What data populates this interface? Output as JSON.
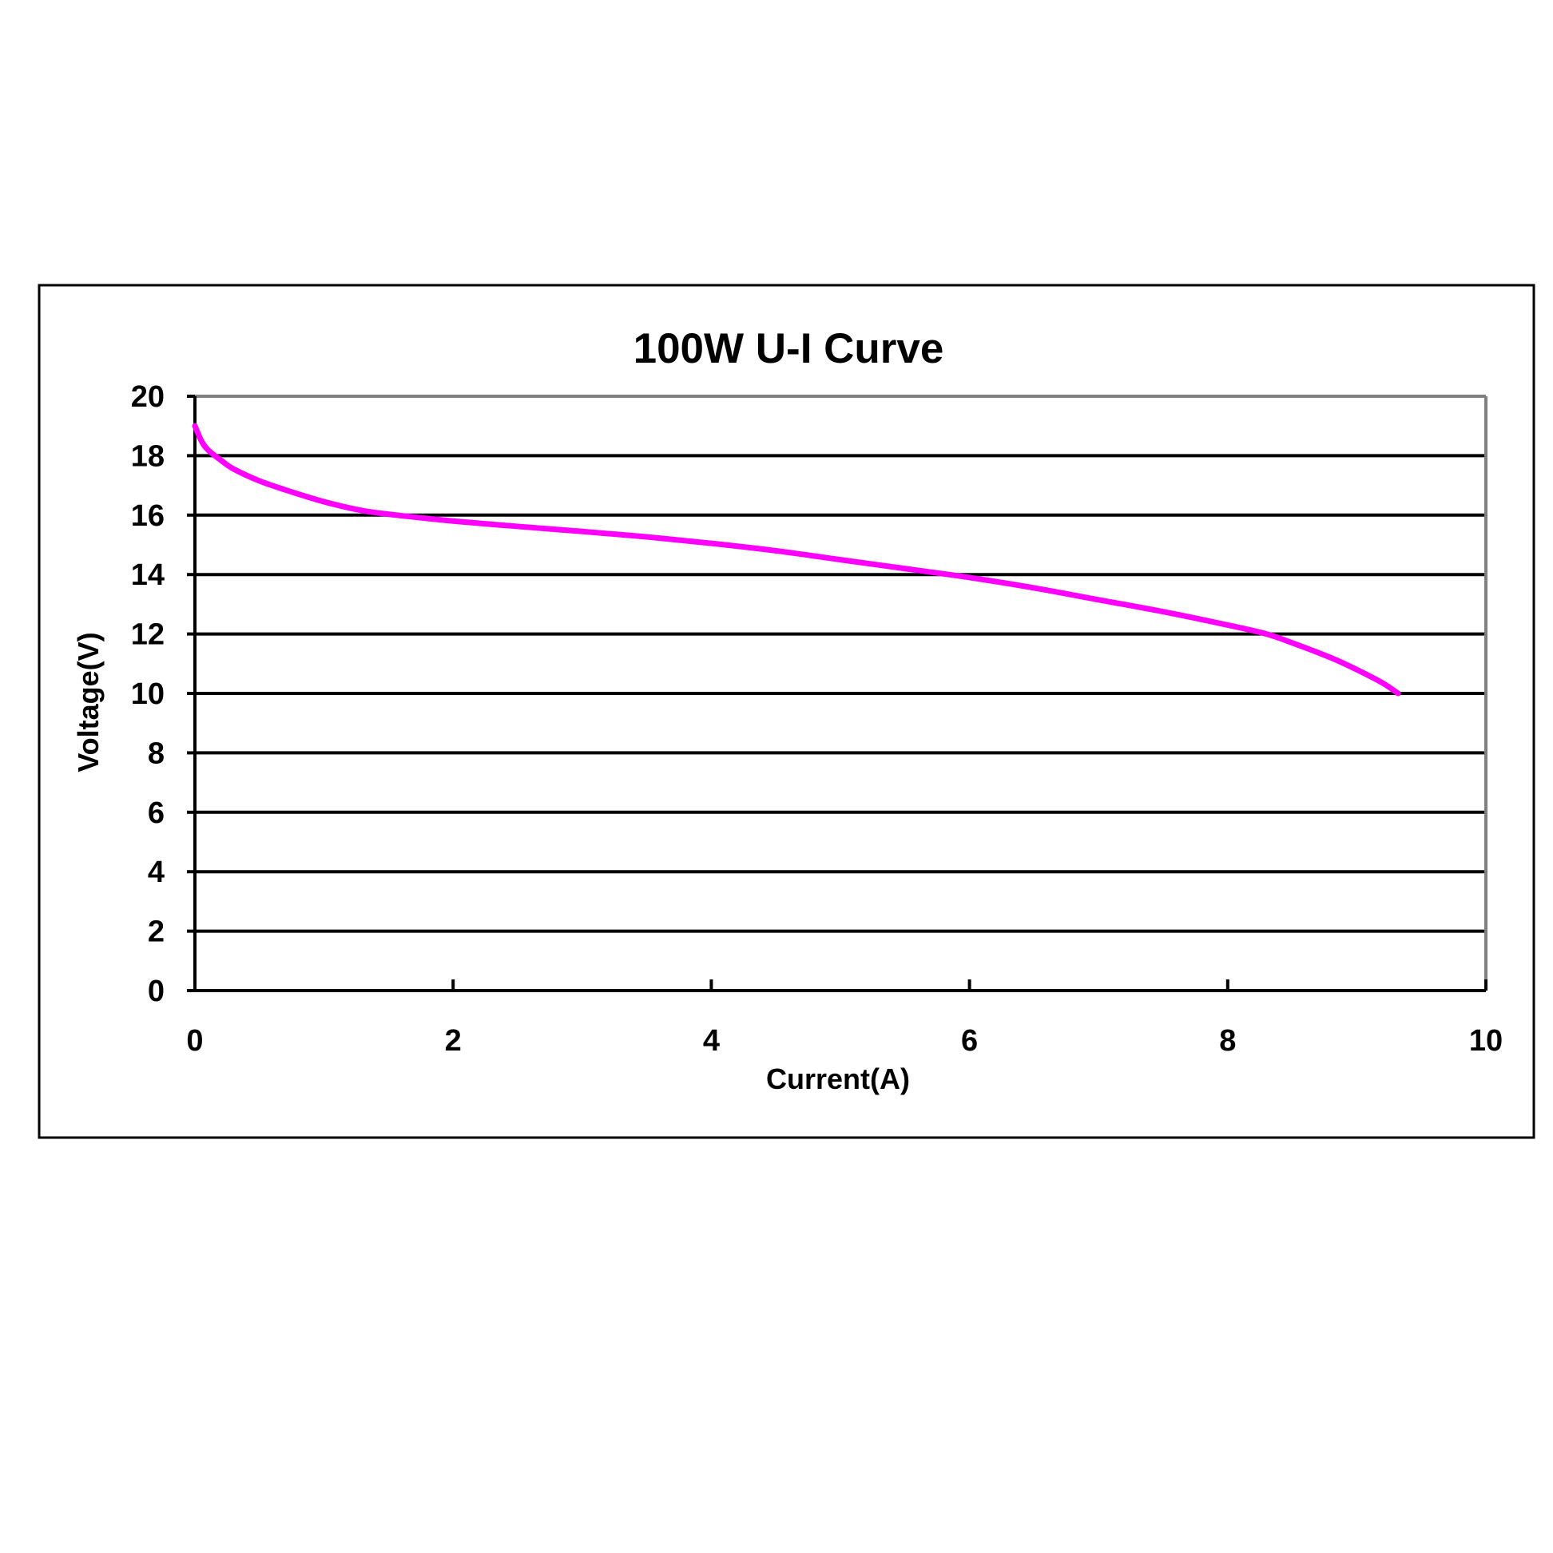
{
  "chart_data": {
    "type": "line",
    "title": "100W U-I Curve",
    "xlabel": "Current(A)",
    "ylabel": "Voltage(V)",
    "xlim": [
      0,
      10
    ],
    "ylim": [
      0,
      20
    ],
    "x_ticks": [
      0,
      2,
      4,
      6,
      8,
      10
    ],
    "y_ticks": [
      0,
      2,
      4,
      6,
      8,
      10,
      12,
      14,
      16,
      18,
      20
    ],
    "x_tick_labels": [
      "0",
      "2",
      "4",
      "6",
      "8",
      "10"
    ],
    "y_tick_labels": [
      "0",
      "2",
      "4",
      "6",
      "8",
      "10",
      "12",
      "14",
      "16",
      "18",
      "20"
    ],
    "grid": "horizontal",
    "legend": "none",
    "line_color": "#ff00ff",
    "series": [
      {
        "x": [
          0,
          0.05,
          0.1,
          0.2,
          0.3,
          0.5,
          0.7,
          1.0,
          1.3,
          1.6,
          2.0,
          2.5,
          3.0,
          3.5,
          4.0,
          4.5,
          5.0,
          5.5,
          6.0,
          6.5,
          7.0,
          7.5,
          8.0,
          8.3,
          8.5,
          8.8,
          9.0,
          9.2,
          9.32
        ],
        "y": [
          19.0,
          18.5,
          18.2,
          17.85,
          17.55,
          17.15,
          16.85,
          16.45,
          16.15,
          15.98,
          15.8,
          15.62,
          15.45,
          15.27,
          15.05,
          14.8,
          14.5,
          14.2,
          13.9,
          13.55,
          13.15,
          12.75,
          12.3,
          12.0,
          11.7,
          11.2,
          10.8,
          10.35,
          10.0
        ]
      }
    ]
  }
}
